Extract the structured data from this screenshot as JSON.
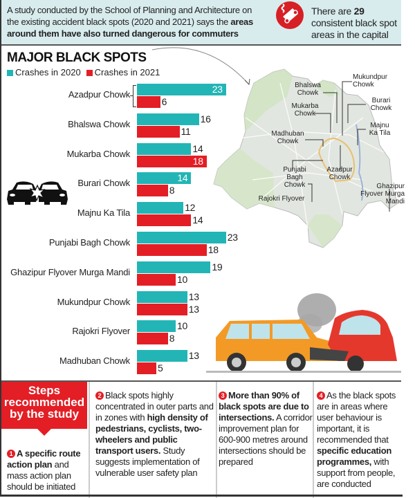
{
  "header": {
    "intro_plain": "A study conducted by the School of Planning and Architecture on the existing accident black spots (2020 and 2021) says the",
    "intro_bold": "areas around them have also turned dangerous for commuters",
    "fact_prefix": "There are",
    "fact_number": "29",
    "fact_suffix": "consistent black spot areas in the capital"
  },
  "title": "MAJOR BLACK SPOTS",
  "legend": {
    "s2020": "Crashes in 2020",
    "s2021": "Crashes in 2021",
    "color2020": "#23b5b5",
    "color2021": "#e31e25"
  },
  "chart_data": {
    "type": "bar",
    "orientation": "horizontal",
    "title": "MAJOR BLACK SPOTS",
    "categories": [
      "Azadpur Chowk",
      "Bhalswa Chowk",
      "Mukarba Chowk",
      "Burari Chowk",
      "Majnu Ka Tila",
      "Punjabi Bagh Chowk",
      "Ghazipur Flyover Murga Mandi",
      "Mukundpur Chowk",
      "Rajokri Flyover",
      "Madhuban Chowk"
    ],
    "series": [
      {
        "name": "Crashes in 2020",
        "color": "#23b5b5",
        "values": [
          23,
          16,
          14,
          14,
          12,
          23,
          19,
          13,
          10,
          13
        ]
      },
      {
        "name": "Crashes in 2021",
        "color": "#e31e25",
        "values": [
          6,
          11,
          18,
          8,
          14,
          18,
          10,
          13,
          8,
          5
        ]
      }
    ],
    "xlabel": "",
    "ylabel": "",
    "grid": false,
    "legend_position": "top-left",
    "data_labels": true
  },
  "map": {
    "labels": {
      "mukundpur": "Mukundpur Chowk",
      "bhalswa": "Bhalswa Chowk",
      "burari": "Burari Chowk",
      "mukarba": "Mukarba Chowk",
      "majnu": "Majnu Ka Tila",
      "madhuban": "Madhuban Chowk",
      "punjabi": "Punjabi Bagh Chowk",
      "azadpur": "Azadpur Chowk",
      "ghazipur": "Ghazipur Flyover Murga Mandi",
      "rajokri": "Rajokri Flyover"
    }
  },
  "steps": {
    "heading": "Steps recommended by the study",
    "s1": {
      "num": "1",
      "bold": "A specific route action plan",
      "text": "and mass action plan should be initiated"
    },
    "s2": {
      "num": "2",
      "text1": "Black spots highly concentrated in outer parts and in zones with",
      "bold": "high density of pedestrians, cyclists, two-wheelers and public transport users.",
      "text2": "Study suggests implementation of vulnerable user safety plan"
    },
    "s3": {
      "num": "3",
      "bold": "More than 90% of black spots are due to intersections.",
      "text": "A corridor improvement plan for 600-900 metres around intersections should be prepared"
    },
    "s4": {
      "num": "4",
      "text1": "As the black spots are in areas where user behaviour is important, it is recommended that",
      "bold": "specific education programmes,",
      "text2": "with support from people, are conducted"
    }
  }
}
